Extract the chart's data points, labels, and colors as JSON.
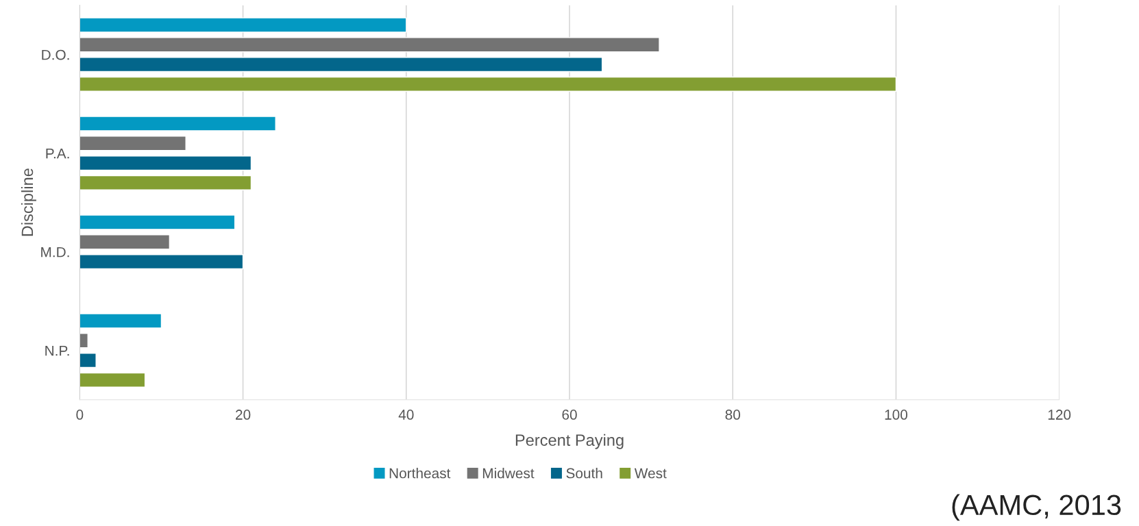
{
  "chart_data": {
    "type": "bar",
    "orientation": "horizontal",
    "xlabel": "Percent Paying",
    "ylabel": "Discipline",
    "categories": [
      "D.O.",
      "P.A.",
      "M.D.",
      "N.P."
    ],
    "series": [
      {
        "name": "Northeast",
        "color": "#0399c2",
        "values": [
          40,
          24,
          19,
          10
        ]
      },
      {
        "name": "Midwest",
        "color": "#737373",
        "values": [
          71,
          13,
          11,
          1
        ]
      },
      {
        "name": "South",
        "color": "#03668b",
        "values": [
          64,
          21,
          20,
          2
        ]
      },
      {
        "name": "West",
        "color": "#839e32",
        "values": [
          100,
          21,
          null,
          8
        ]
      }
    ],
    "xlim": [
      0,
      120
    ],
    "xticks": [
      0,
      20,
      40,
      60,
      80,
      100,
      120
    ],
    "grid": "x",
    "legend": "bottom",
    "annotations": [
      "(AAMC, 2013"
    ]
  }
}
